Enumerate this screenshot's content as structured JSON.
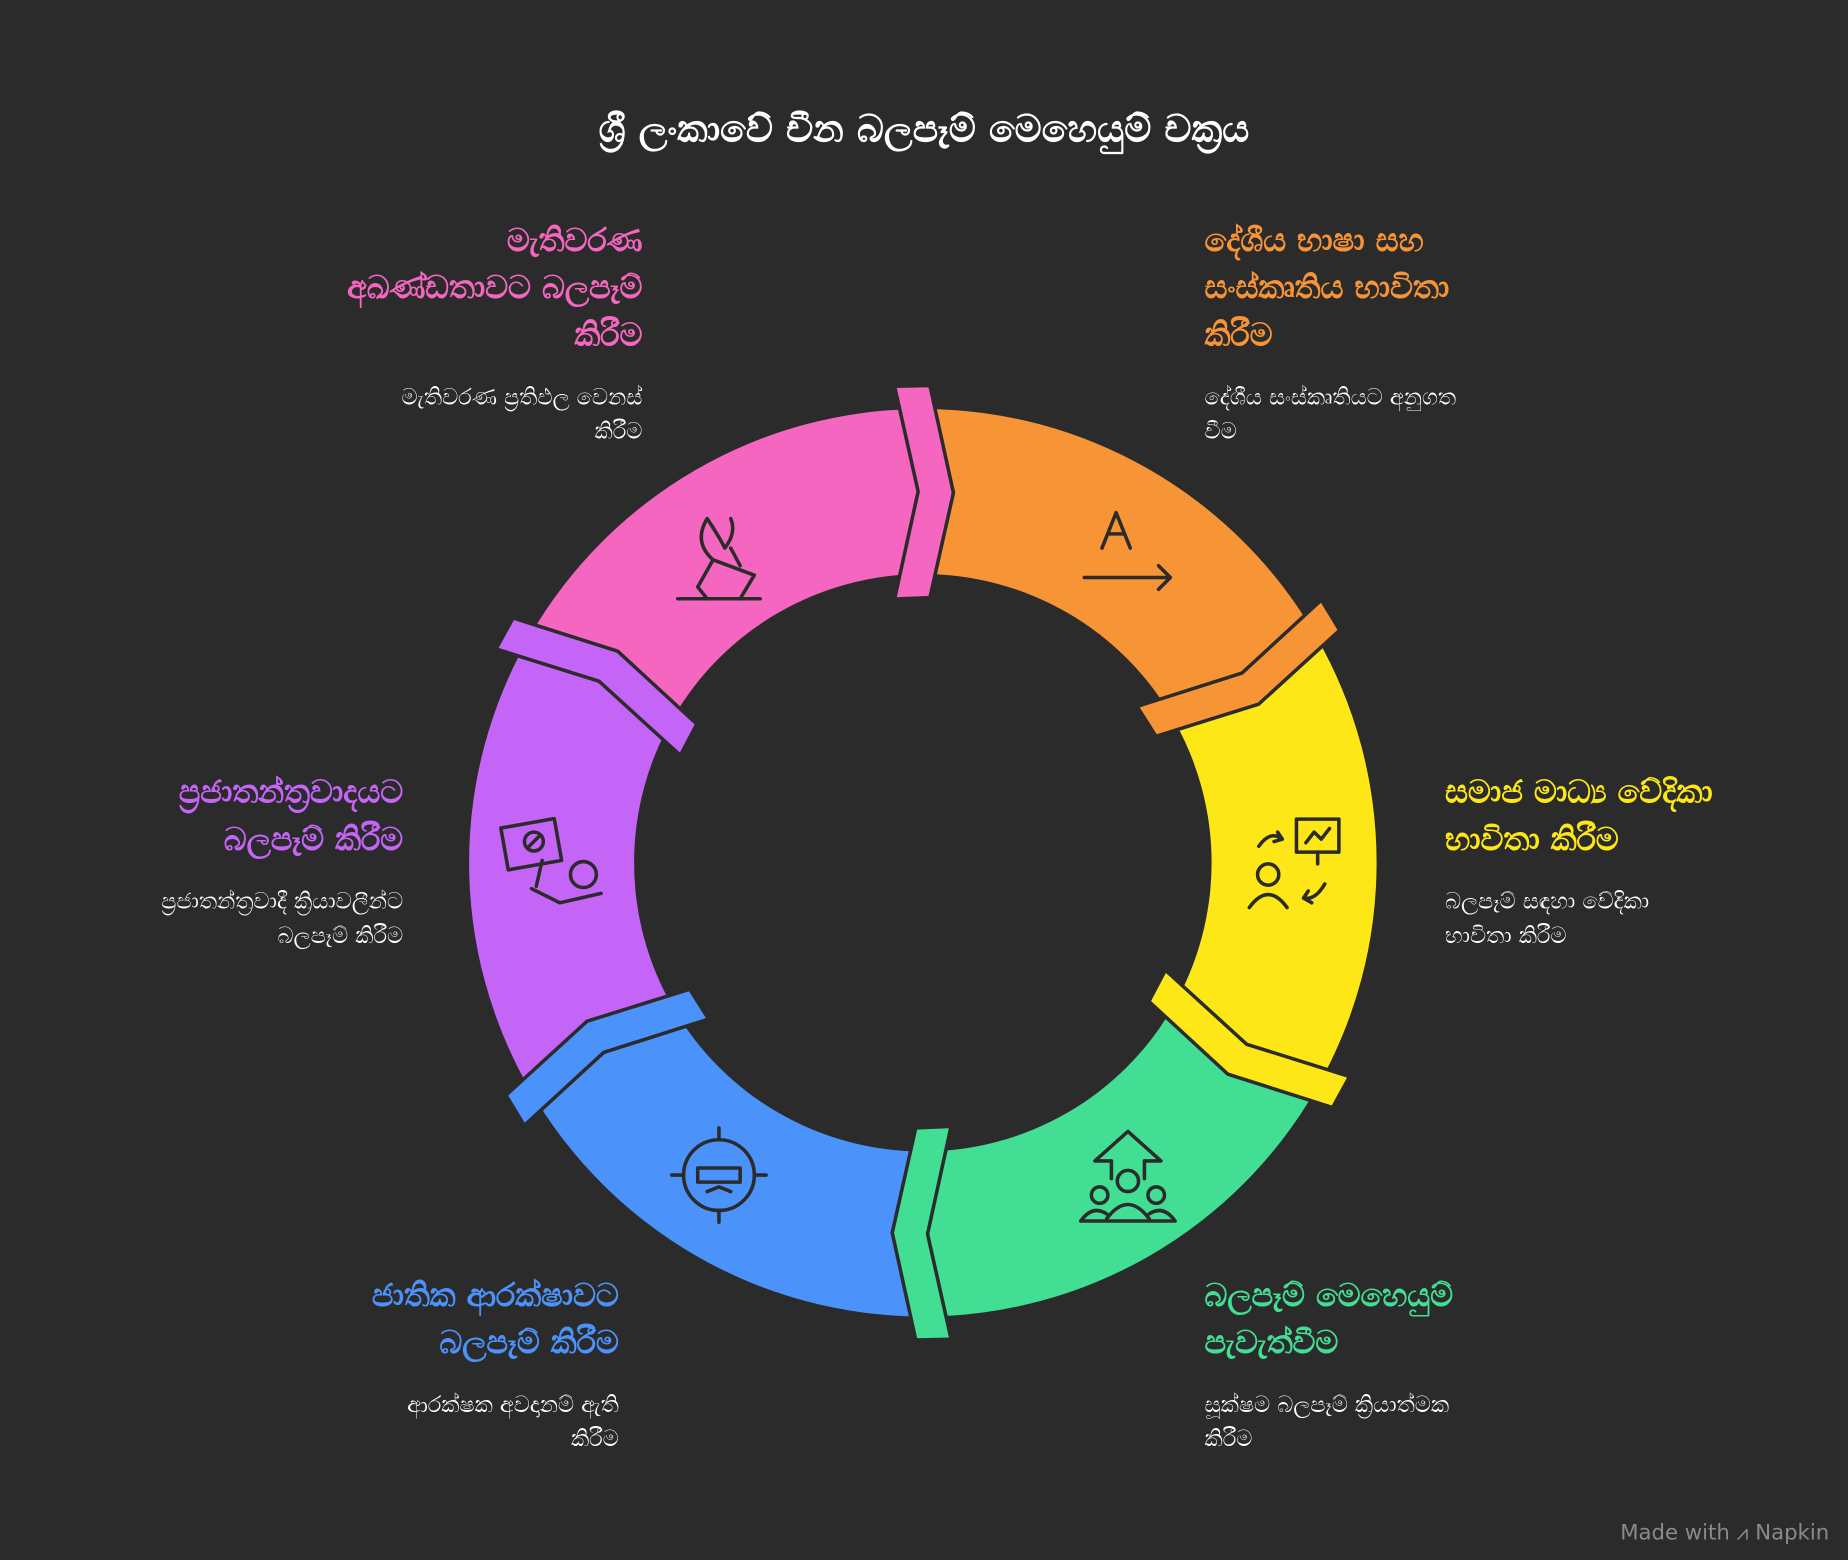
{
  "title": "ශ්‍රී ලංකාවේ චීන බලපෑම් මෙහෙයුම් චක්‍රය",
  "colors": {
    "background": "#2b2b2b",
    "pink": "#f466bf",
    "orange": "#f79536",
    "yellow": "#fde716",
    "green": "#41de94",
    "blue": "#4c92fb",
    "purple": "#c565f7"
  },
  "stages": [
    {
      "key": "orange",
      "color": "#f79536",
      "icon": "language-translate-icon",
      "title": [
        "දේශීය භාෂා සහ",
        "සංස්කෘතිය භාවිතා",
        "කිරීම"
      ],
      "desc": [
        "දේශීය සංස්කෘතියට අනුගත",
        "වීම"
      ]
    },
    {
      "key": "yellow",
      "color": "#fde716",
      "icon": "social-media-presentation-icon",
      "title": [
        "සමාජ මාධ්‍ය වේදිකා",
        "භාවිතා කිරීම"
      ],
      "desc": [
        "බලපෑම් සඳහා වේදිකා",
        "භාවිතා කිරීම"
      ]
    },
    {
      "key": "green",
      "color": "#41de94",
      "icon": "group-influence-arrow-icon",
      "title": [
        "බලපෑම් මෙහෙයුම්",
        "පැවැත්වීම"
      ],
      "desc": [
        "සූක්ෂම බලපෑම් ක්‍රියාත්මක",
        "කිරීම"
      ]
    },
    {
      "key": "blue",
      "color": "#4c92fb",
      "icon": "masked-target-icon",
      "title": [
        "ජාතික ආරක්ෂාවට",
        "බලපෑම් කිරීම"
      ],
      "desc": [
        "ආරක්ෂක අවදානම් ඇති",
        "කිරීම"
      ]
    },
    {
      "key": "purple",
      "color": "#c565f7",
      "icon": "protest-sign-icon",
      "title": [
        "ප්‍රජාතන්ත්‍රවාදයට",
        "බලපෑම් කිරීම"
      ],
      "desc": [
        "ප්‍රජාතන්ත්‍රවාදී ක්‍රියාවලීන්ට",
        "බලපෑම් කිරීම"
      ]
    },
    {
      "key": "pink",
      "color": "#f466bf",
      "icon": "ballot-vote-icon",
      "title": [
        "මැතිවරණ",
        "අඛණ්ඩතාවට බලපෑම්",
        "කිරීම"
      ],
      "desc": [
        "මැතිවරණ ප්‍රතිඵල වෙනස්",
        "කිරීම"
      ]
    }
  ],
  "credit": "Made with ⩘ Napkin"
}
